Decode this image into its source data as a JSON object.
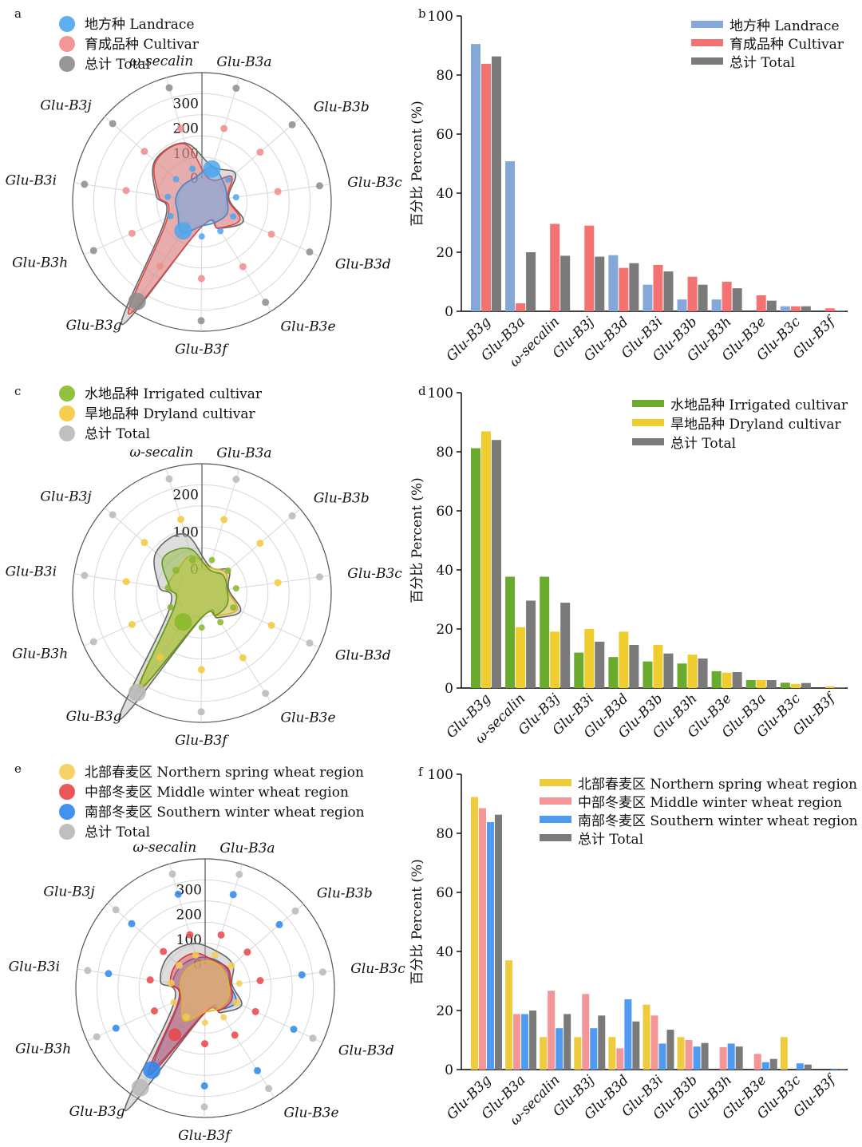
{
  "colors": {
    "landrace": "#86a8d8",
    "cultivar": "#f57272",
    "total": "#7a7a7a",
    "landrace_dot": "#4da6ef",
    "cultivar_dot": "#f28b8b",
    "total_dot": "#8c8c8c",
    "irrigated": "#6aab2e",
    "dryland": "#f0cd2e",
    "irrigated_dot": "#86b92a",
    "dryland_dot": "#f5c93a",
    "north": "#eecc3e",
    "middle": "#f59696",
    "south": "#4f9bf2",
    "north_dot": "#f5cc55",
    "middle_dot": "#ea4448",
    "south_dot": "#2c86ef",
    "grid": "#d8d8d8",
    "axis": "#666666"
  },
  "chart_data": [
    {
      "id": "a",
      "panel_label": "a",
      "type": "radar",
      "categories": [
        "ω-secalin",
        "Glu-B3a",
        "Glu-B3b",
        "Glu-B3c",
        "Glu-B3d",
        "Glu-B3e",
        "Glu-B3f",
        "Glu-B3g",
        "Glu-B3h",
        "Glu-B3i",
        "Glu-B3j"
      ],
      "radial_ticks": [
        "0",
        "100",
        "200",
        "300"
      ],
      "rmax": 360,
      "legend": [
        "地方种 Landrace",
        "育成品种 Cultivar",
        "总计 Total"
      ],
      "series": [
        {
          "name": "地方种 Landrace",
          "values": [
            5,
            50,
            20,
            5,
            15,
            2,
            0,
            50,
            10,
            10,
            5
          ]
        },
        {
          "name": "育成品种 Cultivar",
          "values": [
            145,
            2,
            60,
            8,
            72,
            28,
            3,
            442,
            55,
            80,
            150
          ]
        },
        {
          "name": "总计 Total",
          "values": [
            150,
            52,
            80,
            13,
            87,
            30,
            3,
            492,
            65,
            90,
            155
          ]
        }
      ],
      "dot_positions": [
        {
          "name": "地方种 Landrace",
          "values": [
            0,
            30,
            0,
            0,
            0,
            0,
            0,
            5,
            0,
            0,
            0
          ]
        },
        {
          "name": "育成品种 Cultivar",
          "values": [
            2,
            1.5,
            2,
            2,
            2,
            2,
            2,
            2,
            2,
            2,
            2
          ]
        },
        {
          "name": "总计 Total",
          "values": [
            3,
            3,
            3,
            3,
            3,
            3,
            3,
            3,
            3,
            3,
            3
          ]
        }
      ]
    },
    {
      "id": "b",
      "panel_label": "b",
      "type": "bar",
      "categories": [
        "Glu-B3g",
        "Glu-B3a",
        "ω-secalin",
        "Glu-B3j",
        "Glu-B3d",
        "Glu-B3i",
        "Glu-B3b",
        "Glu-B3h",
        "Glu-B3e",
        "Glu-B3c",
        "Glu-B3f"
      ],
      "ylabel": "百分比 Percent (%)",
      "ylim": [
        0,
        100
      ],
      "yticks": [
        0,
        20,
        40,
        60,
        80,
        100
      ],
      "series": [
        {
          "name": "地方种 Landrace",
          "values": [
            90.5,
            50.8,
            0,
            0,
            19.0,
            9.0,
            4.0,
            4.0,
            0,
            1.7,
            0
          ]
        },
        {
          "name": "育成品种 Cultivar",
          "values": [
            83.8,
            2.7,
            29.6,
            29.0,
            14.7,
            15.7,
            11.7,
            10.0,
            5.4,
            1.7,
            1.0
          ]
        },
        {
          "name": "总计 Total",
          "values": [
            86.3,
            20.0,
            18.8,
            18.5,
            16.3,
            13.5,
            9.0,
            7.8,
            3.6,
            1.7,
            0.2
          ]
        }
      ]
    },
    {
      "id": "c",
      "panel_label": "c",
      "type": "radar",
      "categories": [
        "ω-secalin",
        "Glu-B3a",
        "Glu-B3b",
        "Glu-B3c",
        "Glu-B3d",
        "Glu-B3e",
        "Glu-B3f",
        "Glu-B3g",
        "Glu-B3h",
        "Glu-B3i",
        "Glu-B3j"
      ],
      "radial_ticks": [
        "0",
        "100",
        "200"
      ],
      "rmax": 240,
      "legend": [
        "水地品种 Irrigated cultivar",
        "旱地品种 Dryland cultivar",
        "总计 Total"
      ],
      "series": [
        {
          "name": "水地品种 Irrigated cultivar",
          "values": [
            60,
            2,
            10,
            4,
            10,
            6,
            1,
            240,
            15,
            22,
            75
          ]
        },
        {
          "name": "旱地品种 Dryland cultivar",
          "values": [
            40,
            8,
            20,
            4,
            40,
            8,
            1,
            250,
            15,
            30,
            25
          ]
        },
        {
          "name": "总计 Total",
          "values": [
            100,
            10,
            30,
            8,
            50,
            14,
            2,
            340,
            30,
            52,
            100
          ]
        }
      ],
      "dot_positions": [
        {
          "name": "水地品种 Irrigated cultivar",
          "values": [
            0.6,
            0,
            0,
            0,
            0,
            0,
            0,
            8,
            0,
            0,
            0.9
          ]
        },
        {
          "name": "旱地品种 Dryland cultivar",
          "values": [
            1.9,
            1.2,
            1.3,
            1.2,
            1.3,
            1.3,
            1.2,
            3,
            1.2,
            1.4,
            1.8
          ]
        },
        {
          "name": "总计 Total",
          "values": [
            3,
            3,
            3,
            3,
            3,
            3,
            3,
            3,
            3,
            3,
            3
          ]
        }
      ]
    },
    {
      "id": "d",
      "panel_label": "d",
      "type": "bar",
      "categories": [
        "Glu-B3g",
        "ω-secalin",
        "Glu-B3j",
        "Glu-B3i",
        "Glu-B3d",
        "Glu-B3b",
        "Glu-B3h",
        "Glu-B3e",
        "Glu-B3a",
        "Glu-B3c",
        "Glu-B3f"
      ],
      "ylabel": "百分比 Percent (%)",
      "ylim": [
        0,
        100
      ],
      "yticks": [
        0,
        20,
        40,
        60,
        80,
        100
      ],
      "series": [
        {
          "name": "水地品种 Irrigated cultivar",
          "values": [
            81.2,
            37.7,
            37.7,
            12.0,
            10.5,
            9.0,
            8.3,
            5.7,
            2.7,
            1.8,
            0
          ]
        },
        {
          "name": "旱地品种 Dryland cultivar",
          "values": [
            86.9,
            20.6,
            19.1,
            20.0,
            19.1,
            14.6,
            11.3,
            5.2,
            2.7,
            1.4,
            0.6
          ]
        },
        {
          "name": "总计 Total",
          "values": [
            84.0,
            29.6,
            28.9,
            15.7,
            14.6,
            11.7,
            10.0,
            5.4,
            2.7,
            1.7,
            0.2
          ]
        }
      ]
    },
    {
      "id": "e",
      "panel_label": "e",
      "type": "radar",
      "categories": [
        "ω-secalin",
        "Glu-B3a",
        "Glu-B3b",
        "Glu-B3c",
        "Glu-B3d",
        "Glu-B3e",
        "Glu-B3f",
        "Glu-B3g",
        "Glu-B3h",
        "Glu-B3i",
        "Glu-B3j"
      ],
      "radial_ticks": [
        "0",
        "100",
        "200",
        "300"
      ],
      "rmax": 360,
      "legend": [
        "北部春麦区 Northern spring wheat region",
        "中部冬麦区 Middle winter wheat region",
        "南部冬麦区 Southern winter wheat region",
        "总计 Total"
      ],
      "series": [
        {
          "name": "北部春麦区 Northern spring wheat region",
          "values": [
            10,
            15,
            5,
            0,
            5,
            2,
            0,
            60,
            5,
            5,
            10
          ]
        },
        {
          "name": "中部冬麦区 Middle winter wheat region",
          "values": [
            50,
            20,
            25,
            8,
            20,
            10,
            2,
            320,
            20,
            45,
            55
          ]
        },
        {
          "name": "南部冬麦区 Southern winter wheat region",
          "values": [
            30,
            25,
            20,
            5,
            40,
            8,
            1,
            280,
            15,
            35,
            35
          ]
        },
        {
          "name": "总计 Total",
          "values": [
            90,
            60,
            50,
            13,
            65,
            20,
            3,
            492,
            40,
            85,
            100
          ]
        }
      ],
      "dot_positions": [
        {
          "name": "北部春麦区 Northern spring wheat region",
          "values": [
            0.5,
            1,
            0.3,
            0,
            0.5,
            0,
            0,
            3,
            0,
            0.5,
            0.5
          ]
        },
        {
          "name": "中部冬麦区 Middle winter wheat region",
          "values": [
            1.4,
            1.5,
            1.5,
            1.6,
            1.7,
            1.6,
            1.5,
            4.2,
            1.6,
            1.5,
            1.6
          ]
        },
        {
          "name": "南部冬麦区 Southern winter wheat region",
          "values": [
            2.2,
            2.4,
            2.3,
            2.3,
            2.5,
            2.3,
            2.3,
            6.6,
            2.4,
            2.3,
            2.3
          ]
        },
        {
          "name": "总计 Total",
          "values": [
            3,
            3,
            3,
            3,
            3,
            3,
            3,
            3,
            3,
            3,
            3
          ]
        }
      ]
    },
    {
      "id": "f",
      "panel_label": "f",
      "type": "bar",
      "categories": [
        "Glu-B3g",
        "Glu-B3a",
        "ω-secalin",
        "Glu-B3j",
        "Glu-B3d",
        "Glu-B3i",
        "Glu-B3b",
        "Glu-B3h",
        "Glu-B3e",
        "Glu-B3c",
        "Glu-B3f"
      ],
      "ylabel": "百分比 Percent (%)",
      "ylim": [
        0,
        100
      ],
      "yticks": [
        0,
        20,
        40,
        60,
        80,
        100
      ],
      "series": [
        {
          "name": "北部春麦区 Northern spring wheat region",
          "values": [
            92.3,
            37.0,
            11.0,
            11.0,
            11.0,
            22.0,
            11.0,
            0,
            0,
            11.0,
            0
          ]
        },
        {
          "name": "中部冬麦区 Middle winter wheat region",
          "values": [
            88.5,
            18.8,
            26.7,
            25.6,
            7.2,
            18.3,
            10.0,
            7.6,
            5.3,
            0,
            0
          ]
        },
        {
          "name": "南部冬麦区 Southern winter wheat region",
          "values": [
            83.8,
            18.8,
            14.0,
            14.0,
            23.8,
            8.8,
            7.8,
            8.8,
            2.5,
            2.1,
            0.3
          ]
        },
        {
          "name": "总计 Total",
          "values": [
            86.3,
            20.0,
            18.8,
            18.3,
            16.3,
            13.5,
            9.0,
            7.8,
            3.6,
            1.7,
            0.2
          ]
        }
      ]
    }
  ],
  "legend_labels": {
    "a": [
      "地方种 Landrace",
      "育成品种 Cultivar",
      "总计 Total"
    ],
    "b": [
      "地方种 Landrace",
      "育成品种 Cultivar",
      "总计 Total"
    ],
    "c": [
      "水地品种 Irrigated cultivar",
      "旱地品种 Dryland cultivar",
      "总计 Total"
    ],
    "d": [
      "水地品种 Irrigated cultivar",
      "旱地品种 Dryland cultivar",
      "总计 Total"
    ],
    "e": [
      "北部春麦区 Northern spring wheat region",
      "中部冬麦区 Middle winter wheat region",
      "南部冬麦区 Southern winter wheat region",
      "总计 Total"
    ],
    "f": [
      "北部春麦区 Northern spring wheat region",
      "中部冬麦区 Middle winter wheat region",
      "南部冬麦区 Southern winter wheat region",
      "总计 Total"
    ]
  }
}
